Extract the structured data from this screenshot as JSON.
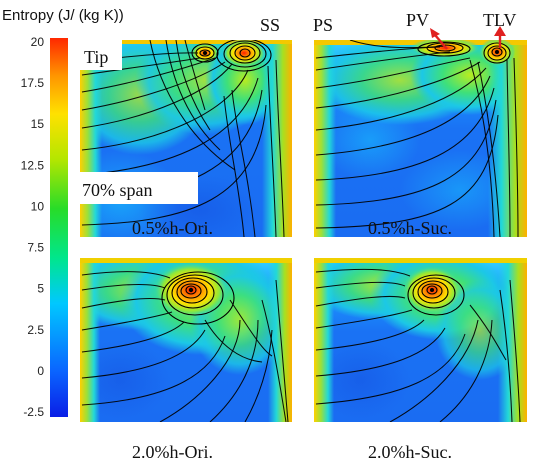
{
  "colorbar": {
    "title": "Entropy (J/ (kg K))",
    "min": -2.5,
    "max": 20,
    "ticks": [
      "20",
      "17.5",
      "15",
      "12.5",
      "10",
      "7.5",
      "5",
      "2.5",
      "0",
      "-2.5"
    ],
    "colors": [
      "#0a1ee6",
      "#0a64ff",
      "#00c8ff",
      "#00e68c",
      "#28dc28",
      "#b4e600",
      "#ffe100",
      "#ff9600",
      "#ff2800"
    ]
  },
  "labels": {
    "tip": "Tip",
    "span": "70% span",
    "ss": "SS",
    "ps": "PS",
    "pv": "PV",
    "tlv": "TLV"
  },
  "panels": [
    {
      "caption": "0.5%h-Ori."
    },
    {
      "caption": "0.5%h-Suc."
    },
    {
      "caption": "2.0%h-Ori."
    },
    {
      "caption": "2.0%h-Suc."
    }
  ],
  "colors": {
    "arrow": "#e02020",
    "streamline": "#000000"
  }
}
